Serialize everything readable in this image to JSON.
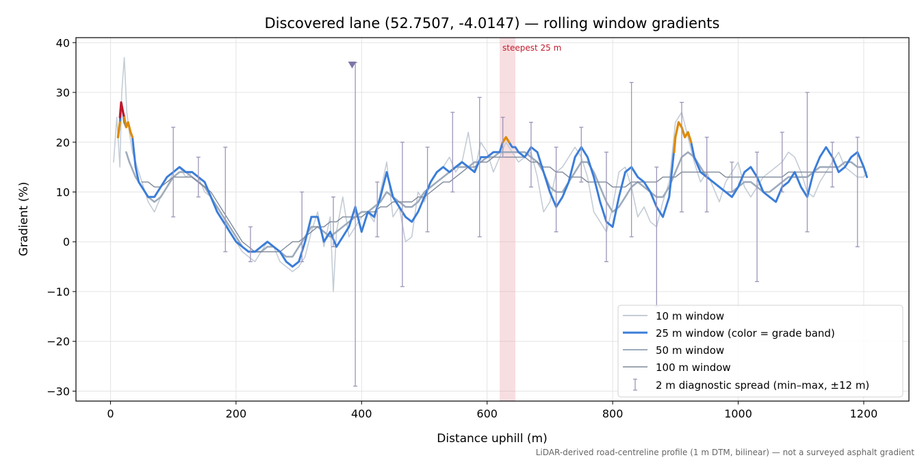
{
  "chart_data": {
    "type": "line",
    "title": "Discovered lane (52.7507, -4.0147) — rolling window gradients",
    "xlabel": "Distance uphill (m)",
    "ylabel": "Gradient (%)",
    "xlim": [
      -55,
      1272
    ],
    "ylim": [
      -32,
      41
    ],
    "xticks": [
      0,
      200,
      400,
      600,
      800,
      1000,
      1200
    ],
    "yticks": [
      -30,
      -20,
      -10,
      0,
      10,
      20,
      30,
      40
    ],
    "xtick_labels": [
      "0",
      "200",
      "400",
      "600",
      "800",
      "1000",
      "1200"
    ],
    "ytick_labels": [
      "−30",
      "−20",
      "−10",
      "0",
      "10",
      "20",
      "30",
      "40"
    ],
    "grid": true,
    "legend_position": "lower-right",
    "footnote": "LiDAR-derived road-centreline profile (1 m DTM, bilinear) — not a surveyed asphalt gradient",
    "highlight": {
      "x_start": 620,
      "x_end": 645,
      "label": "steepest 25 m",
      "color": "#e7a1a8"
    },
    "band_colors": {
      "easy": "#3b7dd8",
      "steep": "#e08a00",
      "very_steep": "#c0192b"
    },
    "series": [
      {
        "name": "10 m window",
        "color": "#c4ccd5",
        "x": [
          5,
          10,
          15,
          18,
          22,
          26,
          30,
          35,
          40,
          50,
          60,
          70,
          80,
          90,
          100,
          110,
          120,
          130,
          140,
          150,
          160,
          170,
          180,
          190,
          200,
          210,
          220,
          230,
          240,
          250,
          260,
          270,
          280,
          290,
          300,
          310,
          320,
          330,
          340,
          350,
          355,
          360,
          370,
          380,
          390,
          400,
          410,
          420,
          430,
          440,
          450,
          460,
          470,
          480,
          490,
          500,
          510,
          520,
          530,
          540,
          550,
          560,
          570,
          580,
          590,
          600,
          610,
          620,
          630,
          640,
          650,
          660,
          670,
          680,
          690,
          700,
          710,
          720,
          730,
          740,
          750,
          760,
          770,
          780,
          790,
          800,
          810,
          820,
          830,
          840,
          850,
          860,
          870,
          880,
          890,
          900,
          910,
          920,
          930,
          940,
          950,
          960,
          970,
          980,
          990,
          1000,
          1010,
          1020,
          1030,
          1040,
          1050,
          1060,
          1070,
          1080,
          1090,
          1100,
          1110,
          1120,
          1130,
          1140,
          1150,
          1160,
          1170,
          1180,
          1190,
          1200,
          1205
        ],
        "y": [
          16,
          25,
          15,
          30,
          37,
          26,
          22,
          18,
          16,
          12,
          8,
          6,
          9,
          11,
          14,
          15,
          13,
          14,
          13,
          10,
          9,
          7,
          5,
          2,
          0,
          -2,
          -3,
          -4,
          -2,
          0,
          -1,
          -4,
          -5,
          -6,
          -5,
          -3,
          2,
          6,
          -1,
          5,
          -10,
          2,
          9,
          1,
          3,
          5,
          6,
          4,
          10,
          16,
          5,
          7,
          0,
          1,
          10,
          8,
          12,
          14,
          15,
          17,
          14,
          16,
          22,
          14,
          20,
          18,
          14,
          17,
          20,
          18,
          16,
          17,
          18,
          13,
          6,
          8,
          14,
          15,
          17,
          19,
          17,
          13,
          6,
          4,
          2,
          7,
          14,
          15,
          11,
          5,
          7,
          4,
          3,
          8,
          12,
          24,
          26,
          21,
          16,
          12,
          14,
          11,
          8,
          12,
          14,
          16,
          11,
          9,
          11,
          13,
          14,
          15,
          16,
          18,
          17,
          14,
          10,
          9,
          12,
          14,
          16,
          18,
          15,
          14,
          13,
          13,
          14
        ]
      },
      {
        "name": "25 m window (color = grade band)",
        "color": "#3b7dd8",
        "x": [
          12,
          15,
          17,
          20,
          22,
          25,
          28,
          32,
          35,
          40,
          45,
          50,
          60,
          70,
          80,
          90,
          100,
          110,
          120,
          130,
          140,
          150,
          160,
          170,
          180,
          190,
          200,
          210,
          220,
          230,
          240,
          250,
          260,
          270,
          280,
          290,
          300,
          310,
          320,
          330,
          340,
          350,
          360,
          370,
          380,
          390,
          400,
          410,
          420,
          430,
          440,
          450,
          460,
          470,
          480,
          490,
          500,
          510,
          520,
          530,
          540,
          550,
          560,
          570,
          580,
          590,
          600,
          610,
          620,
          625,
          630,
          635,
          640,
          645,
          650,
          660,
          670,
          680,
          690,
          700,
          710,
          720,
          730,
          740,
          750,
          760,
          770,
          780,
          790,
          800,
          810,
          820,
          830,
          840,
          850,
          860,
          870,
          880,
          890,
          900,
          905,
          910,
          915,
          920,
          925,
          930,
          940,
          950,
          960,
          970,
          980,
          990,
          1000,
          1010,
          1020,
          1030,
          1040,
          1050,
          1060,
          1070,
          1080,
          1090,
          1100,
          1110,
          1120,
          1130,
          1140,
          1150,
          1160,
          1170,
          1180,
          1190,
          1200,
          1205
        ],
        "y": [
          21,
          24,
          28,
          26,
          24,
          23,
          24,
          22,
          21,
          15,
          12,
          11,
          9,
          9,
          11,
          13,
          14,
          15,
          14,
          14,
          13,
          12,
          9,
          6,
          4,
          2,
          0,
          -1,
          -2,
          -2,
          -1,
          0,
          -1,
          -2,
          -4,
          -5,
          -4,
          0,
          5,
          5,
          0,
          2,
          -1,
          1,
          3,
          7,
          2,
          6,
          5,
          9,
          14,
          9,
          7,
          5,
          4,
          6,
          9,
          12,
          14,
          15,
          14,
          15,
          16,
          15,
          14,
          17,
          17,
          18,
          18,
          20,
          21,
          20,
          19,
          19,
          18,
          17,
          19,
          18,
          14,
          10,
          7,
          9,
          12,
          17,
          19,
          17,
          13,
          8,
          4,
          3,
          9,
          14,
          15,
          13,
          12,
          10,
          7,
          5,
          9,
          21,
          24,
          23,
          21,
          22,
          20,
          17,
          14,
          13,
          12,
          11,
          10,
          9,
          11,
          14,
          15,
          13,
          10,
          9,
          8,
          11,
          12,
          14,
          11,
          9,
          14,
          17,
          19,
          17,
          14,
          15,
          17,
          18,
          15,
          13
        ]
      },
      {
        "name": "50 m window",
        "color": "#9eabbb",
        "x": [
          25,
          30,
          40,
          50,
          60,
          70,
          80,
          90,
          100,
          110,
          120,
          130,
          140,
          150,
          160,
          170,
          180,
          190,
          200,
          210,
          220,
          230,
          240,
          250,
          260,
          270,
          280,
          290,
          300,
          310,
          320,
          330,
          340,
          350,
          360,
          370,
          380,
          390,
          400,
          410,
          420,
          430,
          440,
          450,
          460,
          470,
          480,
          490,
          500,
          510,
          520,
          530,
          540,
          550,
          560,
          570,
          580,
          590,
          600,
          610,
          620,
          630,
          640,
          650,
          660,
          670,
          680,
          690,
          700,
          710,
          720,
          730,
          740,
          750,
          760,
          770,
          780,
          790,
          800,
          810,
          820,
          830,
          840,
          850,
          860,
          870,
          880,
          890,
          900,
          910,
          920,
          930,
          940,
          950,
          960,
          970,
          980,
          990,
          1000,
          1010,
          1020,
          1030,
          1040,
          1050,
          1060,
          1070,
          1080,
          1090,
          1100,
          1110,
          1120,
          1130,
          1140,
          1150,
          1160,
          1170,
          1180,
          1190,
          1200
        ],
        "y": [
          18,
          16,
          13,
          11,
          9,
          8,
          9,
          11,
          13,
          14,
          14,
          13,
          12,
          11,
          9,
          7,
          5,
          3,
          1,
          -1,
          -2,
          -2,
          -2,
          -1,
          -1,
          -2,
          -3,
          -3,
          -1,
          1,
          3,
          3,
          2,
          1,
          2,
          3,
          4,
          5,
          6,
          6,
          7,
          8,
          10,
          9,
          8,
          7,
          7,
          8,
          10,
          11,
          12,
          13,
          14,
          15,
          15,
          15,
          16,
          16,
          17,
          17,
          18,
          18,
          18,
          18,
          18,
          17,
          16,
          14,
          11,
          10,
          10,
          12,
          14,
          16,
          16,
          14,
          11,
          8,
          6,
          7,
          9,
          11,
          12,
          11,
          10,
          9,
          9,
          11,
          14,
          17,
          18,
          17,
          15,
          13,
          12,
          11,
          10,
          10,
          11,
          12,
          12,
          11,
          10,
          10,
          11,
          12,
          13,
          13,
          13,
          13,
          14,
          15,
          15,
          15,
          15,
          16,
          16,
          15,
          15
        ]
      },
      {
        "name": "100 m window",
        "color": "#7d8898",
        "x": [
          50,
          60,
          70,
          80,
          90,
          100,
          110,
          120,
          130,
          140,
          150,
          160,
          170,
          180,
          190,
          200,
          210,
          220,
          230,
          240,
          250,
          260,
          270,
          280,
          290,
          300,
          310,
          320,
          330,
          340,
          350,
          360,
          370,
          380,
          390,
          400,
          410,
          420,
          430,
          440,
          450,
          460,
          470,
          480,
          490,
          500,
          510,
          520,
          530,
          540,
          550,
          560,
          570,
          580,
          590,
          600,
          610,
          620,
          630,
          640,
          650,
          660,
          670,
          680,
          690,
          700,
          710,
          720,
          730,
          740,
          750,
          760,
          770,
          780,
          790,
          800,
          810,
          820,
          830,
          840,
          850,
          860,
          870,
          880,
          890,
          900,
          910,
          920,
          930,
          940,
          950,
          960,
          970,
          980,
          990,
          1000,
          1010,
          1020,
          1030,
          1040,
          1050,
          1060,
          1070,
          1080,
          1090,
          1100,
          1110,
          1120,
          1130,
          1140,
          1150
        ],
        "y": [
          12,
          12,
          11,
          11,
          12,
          13,
          13,
          13,
          13,
          12,
          11,
          10,
          8,
          6,
          4,
          2,
          0,
          -1,
          -2,
          -2,
          -2,
          -2,
          -2,
          -1,
          0,
          0,
          1,
          2,
          3,
          3,
          4,
          4,
          5,
          5,
          5,
          5,
          6,
          6,
          7,
          7,
          8,
          8,
          8,
          8,
          9,
          9,
          10,
          11,
          12,
          12,
          13,
          14,
          15,
          15,
          16,
          16,
          17,
          17,
          17,
          17,
          17,
          17,
          16,
          16,
          15,
          15,
          14,
          14,
          13,
          13,
          13,
          12,
          12,
          12,
          12,
          11,
          11,
          11,
          12,
          12,
          12,
          12,
          12,
          13,
          13,
          13,
          14,
          14,
          14,
          14,
          14,
          14,
          14,
          13,
          13,
          13,
          13,
          13,
          13,
          13,
          13,
          13,
          13,
          14,
          14,
          14,
          14,
          14,
          14,
          14,
          14
        ]
      }
    ],
    "colored_segments": [
      {
        "band": "very_steep",
        "x": [
          15,
          17,
          20,
          22
        ],
        "y": [
          25,
          28,
          26,
          25
        ]
      },
      {
        "band": "steep",
        "x": [
          12,
          15
        ],
        "y": [
          21,
          24
        ]
      },
      {
        "band": "steep",
        "x": [
          22,
          25,
          28,
          32,
          35
        ],
        "y": [
          25,
          23,
          24,
          22,
          21
        ]
      },
      {
        "band": "steep",
        "x": [
          625,
          630,
          635
        ],
        "y": [
          20,
          21,
          20
        ]
      },
      {
        "band": "steep",
        "x": [
          898,
          900,
          905,
          910,
          915,
          920,
          925
        ],
        "y": [
          18,
          21,
          24,
          23,
          21,
          22,
          20
        ]
      }
    ],
    "error_bars": {
      "name": "2 m diagnostic spread (min–max, ±12 m)",
      "color": "#9c95b8",
      "x": [
        100,
        140,
        183,
        223,
        305,
        355,
        390,
        425,
        465,
        505,
        545,
        588,
        625,
        670,
        710,
        750,
        790,
        830,
        870,
        910,
        950,
        990,
        1030,
        1070,
        1110,
        1150,
        1190
      ],
      "low": [
        5,
        9,
        -2,
        -4,
        -4,
        -1,
        -29,
        1,
        -9,
        2,
        10,
        1,
        17,
        11,
        2,
        12,
        -4,
        1,
        -13,
        6,
        6,
        10,
        -8,
        10,
        2,
        11,
        -1
      ],
      "high": [
        23,
        17,
        19,
        3,
        10,
        9,
        36,
        12,
        20,
        19,
        26,
        29,
        25,
        24,
        19,
        23,
        18,
        32,
        15,
        28,
        21,
        16,
        18,
        22,
        30,
        20,
        21
      ],
      "marker_x": 385,
      "marker_y": 35.5
    }
  }
}
